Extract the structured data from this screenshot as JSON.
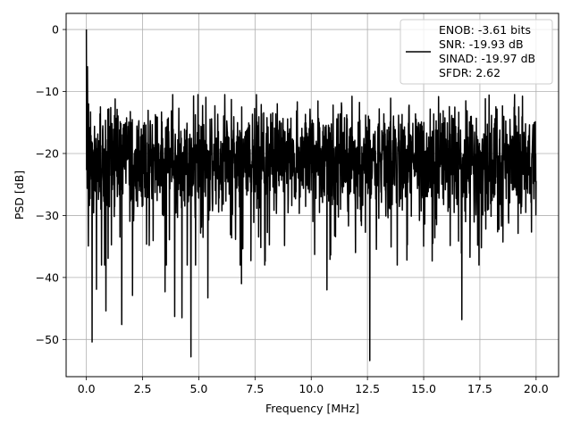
{
  "chart_data": {
    "type": "line",
    "title": "",
    "xlabel": "Frequency [MHz]",
    "ylabel": "PSD [dB]",
    "xlim": [
      -0.9,
      21.0
    ],
    "ylim": [
      -56.0,
      2.6
    ],
    "xticks": [
      0.0,
      2.5,
      5.0,
      7.5,
      10.0,
      12.5,
      15.0,
      17.5,
      20.0
    ],
    "xtick_labels": [
      "0.0",
      "2.5",
      "5.0",
      "7.5",
      "10.0",
      "12.5",
      "15.0",
      "17.5",
      "20.0"
    ],
    "yticks": [
      0,
      -10,
      -20,
      -30,
      -40,
      -50
    ],
    "ytick_labels": [
      "0",
      "−10",
      "−20",
      "−30",
      "−40",
      "−50"
    ],
    "grid": true,
    "legend_position": "top-right",
    "series": [
      {
        "name": "ENOB: -3.61 bits\nSNR: -19.93 dB\nSINAD: -19.97 dB\nSFDR: 2.62",
        "color": "#000000",
        "x_range": [
          0.0,
          20.0
        ],
        "sample_count": 2048,
        "peak_points": [
          [
            0.0,
            0.0
          ],
          [
            0.05,
            -6.0
          ],
          [
            0.1,
            -12.0
          ],
          [
            0.15,
            -16.0
          ]
        ],
        "noise_floor_mean": -21.0,
        "noise_upper_envelope": -11.5,
        "noise_lower_envelope": -36.0,
        "notable_minima": [
          [
            0.25,
            -50.4
          ],
          [
            0.45,
            -41.9
          ],
          [
            0.87,
            -45.4
          ],
          [
            1.57,
            -47.6
          ],
          [
            2.05,
            -42.9
          ],
          [
            3.5,
            -42.3
          ],
          [
            3.93,
            -46.3
          ],
          [
            4.25,
            -46.5
          ],
          [
            4.65,
            -52.8
          ],
          [
            5.4,
            -43.3
          ],
          [
            6.9,
            -41.0
          ],
          [
            10.7,
            -42.0
          ],
          [
            12.6,
            -53.4
          ],
          [
            16.7,
            -46.8
          ]
        ]
      }
    ]
  }
}
